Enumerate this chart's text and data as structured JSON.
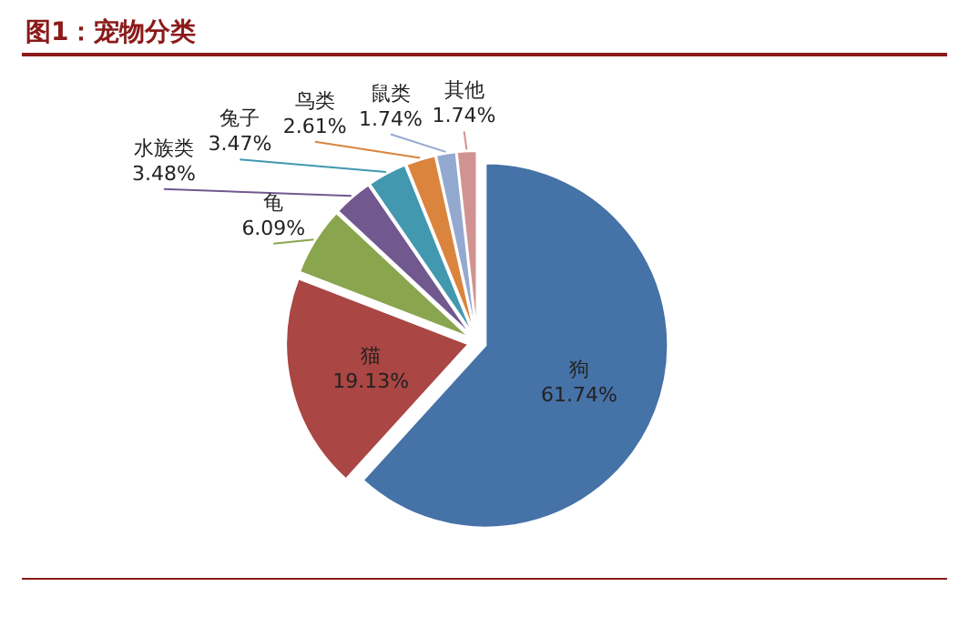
{
  "chart_data": {
    "type": "pie",
    "title": "图1：宠物分类",
    "categories": [
      "狗",
      "猫",
      "龟",
      "水族类",
      "兔子",
      "鸟类",
      "鼠类",
      "其他"
    ],
    "values": [
      61.74,
      19.13,
      6.09,
      3.48,
      3.47,
      2.61,
      1.74,
      1.74
    ],
    "value_labels": [
      "61.74%",
      "19.13%",
      "6.09%",
      "3.48%",
      "3.47%",
      "2.61%",
      "1.74%",
      "1.74%"
    ],
    "colors": [
      "#4572a7",
      "#aa4643",
      "#89a54e",
      "#71588f",
      "#4198af",
      "#db843d",
      "#93a9cf",
      "#d19392"
    ]
  }
}
